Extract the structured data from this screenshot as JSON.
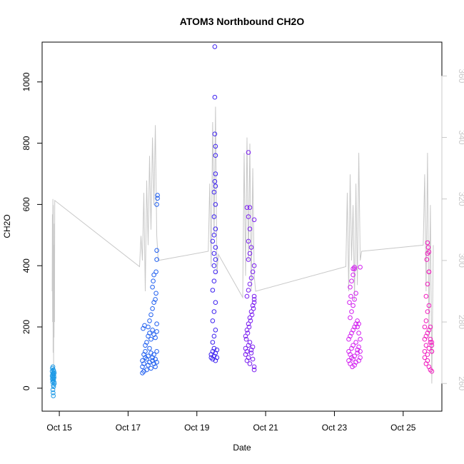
{
  "chart_data": {
    "type": "scatter",
    "title": "ATOM3 Northbound CH2O",
    "xlabel": "Date",
    "ylabel": "CH2O",
    "xlim": [
      "2017-10-14T12:00",
      "2017-10-26T03:00"
    ],
    "ylim": [
      -75,
      1130
    ],
    "y2lim": [
      251,
      371
    ],
    "xticks": [
      {
        "label": "Oct 15",
        "value": "2017-10-15"
      },
      {
        "label": "Oct 17",
        "value": "2017-10-17"
      },
      {
        "label": "Oct 19",
        "value": "2017-10-19"
      },
      {
        "label": "Oct 21",
        "value": "2017-10-21"
      },
      {
        "label": "Oct 23",
        "value": "2017-10-23"
      },
      {
        "label": "Oct 25",
        "value": "2017-10-25"
      }
    ],
    "yticks": [
      0,
      200,
      400,
      600,
      800,
      1000
    ],
    "y2ticks": [
      260,
      280,
      300,
      320,
      340,
      360
    ],
    "grid": false,
    "marker": "open-circle",
    "point_colors": [
      "#1e9ae6",
      "#1f5ff0",
      "#3d22f0",
      "#7b1ff0",
      "#d21ef0",
      "#f01ebe"
    ],
    "series": [
      {
        "color": "#1e9ae6",
        "x": [
          "2017-10-14T19:00",
          "2017-10-14T19:00",
          "2017-10-14T19:10",
          "2017-10-14T19:10",
          "2017-10-14T19:20",
          "2017-10-14T19:20",
          "2017-10-14T19:30",
          "2017-10-14T19:30",
          "2017-10-14T19:40",
          "2017-10-14T19:40",
          "2017-10-14T19:50",
          "2017-10-14T19:50",
          "2017-10-14T20:00",
          "2017-10-14T20:00",
          "2017-10-14T20:10",
          "2017-10-14T20:10",
          "2017-10-14T20:20",
          "2017-10-14T20:20",
          "2017-10-14T20:30",
          "2017-10-14T20:30",
          "2017-10-14T19:30",
          "2017-10-14T19:40",
          "2017-10-14T19:50",
          "2017-10-14T20:00"
        ],
        "y": [
          40,
          55,
          30,
          65,
          45,
          20,
          70,
          35,
          50,
          25,
          60,
          10,
          45,
          30,
          55,
          40,
          20,
          35,
          50,
          15,
          -5,
          -15,
          -25,
          5
        ]
      },
      {
        "color": "#1f5ff0",
        "x": [
          "2017-10-17T10:00",
          "2017-10-17T10:00",
          "2017-10-17T11:00",
          "2017-10-17T11:00",
          "2017-10-17T12:00",
          "2017-10-17T12:00",
          "2017-10-17T13:00",
          "2017-10-17T13:00",
          "2017-10-17T14:00",
          "2017-10-17T14:00",
          "2017-10-17T15:00",
          "2017-10-17T15:00",
          "2017-10-17T16:00",
          "2017-10-17T16:00",
          "2017-10-17T17:00",
          "2017-10-17T17:00",
          "2017-10-17T18:00",
          "2017-10-17T18:00",
          "2017-10-17T19:00",
          "2017-10-17T19:00",
          "2017-10-17T20:00",
          "2017-10-17T20:00",
          "2017-10-17T10:00",
          "2017-10-17T11:00",
          "2017-10-17T12:00",
          "2017-10-17T13:00",
          "2017-10-17T14:00",
          "2017-10-17T15:00",
          "2017-10-17T16:00",
          "2017-10-17T17:00",
          "2017-10-17T18:00",
          "2017-10-17T19:00",
          "2017-10-17T20:00",
          "2017-10-17T14:00",
          "2017-10-17T15:00",
          "2017-10-17T16:00",
          "2017-10-17T17:00",
          "2017-10-17T18:00",
          "2017-10-17T19:00",
          "2017-10-17T20:00",
          "2017-10-17T10:30",
          "2017-10-17T11:30",
          "2017-10-17T17:00",
          "2017-10-17T17:30",
          "2017-10-17T18:00",
          "2017-10-17T19:30",
          "2017-10-17T19:30",
          "2017-10-17T20:00",
          "2017-10-17T20:00",
          "2017-10-17T20:00",
          "2017-10-17T20:30",
          "2017-10-17T20:30"
        ],
        "y": [
          70,
          90,
          110,
          80,
          100,
          120,
          60,
          95,
          105,
          75,
          85,
          130,
          115,
          65,
          100,
          90,
          80,
          110,
          95,
          70,
          120,
          85,
          50,
          55,
          140,
          150,
          170,
          180,
          160,
          190,
          175,
          165,
          185,
          200,
          220,
          240,
          260,
          280,
          290,
          210,
          195,
          205,
          330,
          350,
          370,
          380,
          310,
          420,
          450,
          600,
          620,
          630
        ]
      },
      {
        "color": "#3d22f0",
        "x": [
          "2017-10-19T10:00",
          "2017-10-19T10:00",
          "2017-10-19T11:00",
          "2017-10-19T11:00",
          "2017-10-19T12:00",
          "2017-10-19T12:00",
          "2017-10-19T13:00",
          "2017-10-19T13:00",
          "2017-10-19T14:00",
          "2017-10-19T14:00",
          "2017-10-19T11:00",
          "2017-10-19T12:00",
          "2017-10-19T13:00",
          "2017-10-19T11:00",
          "2017-10-19T12:00",
          "2017-10-19T13:00",
          "2017-10-19T11:00",
          "2017-10-19T12:00",
          "2017-10-19T13:00",
          "2017-10-19T12:00",
          "2017-10-19T13:00",
          "2017-10-19T12:00",
          "2017-10-19T13:00",
          "2017-10-19T11:00",
          "2017-10-19T12:00",
          "2017-10-19T13:00",
          "2017-10-19T12:00",
          "2017-10-19T13:00",
          "2017-10-19T12:00",
          "2017-10-19T13:00",
          "2017-10-19T13:00",
          "2017-10-19T13:00",
          "2017-10-19T13:00",
          "2017-10-19T12:30",
          "2017-10-19T12:30",
          "2017-10-19T12:30",
          "2017-10-19T12:30"
        ],
        "y": [
          100,
          110,
          120,
          95,
          130,
          105,
          115,
          90,
          125,
          100,
          150,
          170,
          190,
          220,
          250,
          280,
          320,
          350,
          380,
          400,
          420,
          440,
          460,
          480,
          500,
          520,
          560,
          600,
          640,
          660,
          700,
          760,
          790,
          830,
          950,
          1115,
          675
        ]
      },
      {
        "color": "#7b1ff0",
        "x": [
          "2017-10-20T10:00",
          "2017-10-20T10:00",
          "2017-10-20T11:00",
          "2017-10-20T11:00",
          "2017-10-20T12:00",
          "2017-10-20T12:00",
          "2017-10-20T13:00",
          "2017-10-20T13:00",
          "2017-10-20T14:00",
          "2017-10-20T14:00",
          "2017-10-20T15:00",
          "2017-10-20T15:00",
          "2017-10-20T16:00",
          "2017-10-20T16:00",
          "2017-10-20T10:00",
          "2017-10-20T11:00",
          "2017-10-20T12:00",
          "2017-10-20T13:00",
          "2017-10-20T14:00",
          "2017-10-20T15:00",
          "2017-10-20T16:00",
          "2017-10-20T10:30",
          "2017-10-20T11:30",
          "2017-10-20T12:30",
          "2017-10-20T13:30",
          "2017-10-20T14:30",
          "2017-10-20T15:30",
          "2017-10-20T16:00",
          "2017-10-20T11:00",
          "2017-10-20T12:00",
          "2017-10-20T13:00",
          "2017-10-20T14:00",
          "2017-10-20T15:00",
          "2017-10-20T16:00",
          "2017-10-20T12:00",
          "2017-10-20T13:00",
          "2017-10-20T14:00",
          "2017-10-20T12:00",
          "2017-10-20T13:00",
          "2017-10-20T12:00",
          "2017-10-20T11:00",
          "2017-10-20T13:00",
          "2017-10-20T12:00",
          "2017-10-20T16:00",
          "2017-10-20T16:00"
        ],
        "y": [
          110,
          130,
          90,
          120,
          100,
          140,
          80,
          150,
          115,
          125,
          95,
          135,
          70,
          60,
          170,
          190,
          210,
          230,
          250,
          270,
          290,
          160,
          180,
          200,
          220,
          240,
          260,
          280,
          300,
          320,
          340,
          360,
          380,
          400,
          420,
          440,
          460,
          480,
          520,
          560,
          590,
          590,
          770,
          550,
          300
        ]
      },
      {
        "color": "#d21ef0",
        "x": [
          "2017-10-23T10:00",
          "2017-10-23T10:00",
          "2017-10-23T11:00",
          "2017-10-23T11:00",
          "2017-10-23T12:00",
          "2017-10-23T12:00",
          "2017-10-23T13:00",
          "2017-10-23T13:00",
          "2017-10-23T14:00",
          "2017-10-23T14:00",
          "2017-10-23T15:00",
          "2017-10-23T15:00",
          "2017-10-23T16:00",
          "2017-10-23T16:00",
          "2017-10-23T17:00",
          "2017-10-23T17:00",
          "2017-10-23T18:00",
          "2017-10-23T18:00",
          "2017-10-23T10:00",
          "2017-10-23T11:00",
          "2017-10-23T12:00",
          "2017-10-23T13:00",
          "2017-10-23T14:00",
          "2017-10-23T15:00",
          "2017-10-23T16:00",
          "2017-10-23T17:00",
          "2017-10-23T18:00",
          "2017-10-23T11:00",
          "2017-10-23T12:00",
          "2017-10-23T13:00",
          "2017-10-23T14:00",
          "2017-10-23T15:00",
          "2017-10-23T11:00",
          "2017-10-23T12:00",
          "2017-10-23T13:00",
          "2017-10-23T14:00",
          "2017-10-23T16:00",
          "2017-10-23T17:00",
          "2017-10-23T10:30",
          "2017-10-23T11:30",
          "2017-10-23T13:00",
          "2017-10-23T14:00",
          "2017-10-23T18:00",
          "2017-10-23T12:30"
        ],
        "y": [
          90,
          120,
          110,
          80,
          130,
          100,
          140,
          95,
          105,
          75,
          150,
          85,
          125,
          115,
          135,
          90,
          100,
          120,
          160,
          170,
          180,
          190,
          200,
          210,
          220,
          180,
          160,
          230,
          250,
          270,
          290,
          310,
          330,
          350,
          370,
          390,
          200,
          210,
          280,
          300,
          390,
          395,
          395,
          70
        ]
      },
      {
        "color": "#f01ebe",
        "x": [
          "2017-10-25T15:00",
          "2017-10-25T15:00",
          "2017-10-25T16:00",
          "2017-10-25T16:00",
          "2017-10-25T17:00",
          "2017-10-25T17:00",
          "2017-10-25T18:00",
          "2017-10-25T18:00",
          "2017-10-25T19:00",
          "2017-10-25T19:00",
          "2017-10-25T20:00",
          "2017-10-25T20:00",
          "2017-10-25T15:00",
          "2017-10-25T16:00",
          "2017-10-25T17:00",
          "2017-10-25T18:00",
          "2017-10-25T19:00",
          "2017-10-25T20:00",
          "2017-10-25T15:00",
          "2017-10-25T16:00",
          "2017-10-25T17:00",
          "2017-10-25T18:00",
          "2017-10-25T16:00",
          "2017-10-25T17:00",
          "2017-10-25T18:00",
          "2017-10-25T16:30",
          "2017-10-25T17:00",
          "2017-10-25T17:30",
          "2017-10-25T17:00",
          "2017-10-25T18:00",
          "2017-10-25T18:00",
          "2017-10-25T19:00",
          "2017-10-25T20:00",
          "2017-10-25T20:00"
        ],
        "y": [
          100,
          120,
          80,
          140,
          110,
          90,
          130,
          70,
          150,
          60,
          120,
          55,
          160,
          170,
          180,
          190,
          160,
          140,
          200,
          220,
          250,
          270,
          300,
          340,
          380,
          420,
          440,
          460,
          475,
          445,
          380,
          200,
          150,
          120
        ]
      }
    ],
    "secondary_line": {
      "color": "#c8c8c8",
      "x": [
        "2017-10-14T19:00",
        "2017-10-14T19:10",
        "2017-10-14T19:20",
        "2017-10-14T19:30",
        "2017-10-14T19:40",
        "2017-10-14T19:50",
        "2017-10-14T20:00",
        "2017-10-14T20:10",
        "2017-10-14T20:20",
        "2017-10-14T20:30",
        "2017-10-14T20:40",
        "2017-10-14T20:50",
        "2017-10-17T08:00",
        "2017-10-17T09:00",
        "2017-10-17T10:00",
        "2017-10-17T11:00",
        "2017-10-17T12:00",
        "2017-10-17T13:00",
        "2017-10-17T14:00",
        "2017-10-17T15:00",
        "2017-10-17T16:00",
        "2017-10-17T17:00",
        "2017-10-17T18:00",
        "2017-10-17T19:00",
        "2017-10-17T20:00",
        "2017-10-17T21:00",
        "2017-10-19T08:00",
        "2017-10-19T09:00",
        "2017-10-19T10:00",
        "2017-10-19T11:00",
        "2017-10-19T12:00",
        "2017-10-19T13:00",
        "2017-10-19T14:00",
        "2017-10-19T15:00",
        "2017-10-20T08:00",
        "2017-10-20T09:00",
        "2017-10-20T10:00",
        "2017-10-20T11:00",
        "2017-10-20T12:00",
        "2017-10-20T13:00",
        "2017-10-20T14:00",
        "2017-10-20T15:00",
        "2017-10-20T16:00",
        "2017-10-20T17:00",
        "2017-10-23T08:00",
        "2017-10-23T09:00",
        "2017-10-23T10:00",
        "2017-10-23T11:00",
        "2017-10-23T12:00",
        "2017-10-23T13:00",
        "2017-10-23T14:00",
        "2017-10-23T15:00",
        "2017-10-23T16:00",
        "2017-10-23T17:00",
        "2017-10-23T18:00",
        "2017-10-23T19:00",
        "2017-10-25T14:00",
        "2017-10-25T15:00",
        "2017-10-25T16:00",
        "2017-10-25T17:00",
        "2017-10-25T18:00",
        "2017-10-25T19:00",
        "2017-10-25T20:00",
        "2017-10-25T21:00"
      ],
      "y2": [
        290,
        315,
        280,
        320,
        270,
        318,
        265,
        305,
        275,
        312,
        280,
        319.5,
        298,
        308,
        300,
        322,
        290,
        326,
        305,
        334,
        310,
        340,
        318,
        344,
        308,
        300,
        303,
        325,
        298,
        345,
        308,
        350,
        296,
        302,
        288,
        335,
        295,
        340,
        300,
        338,
        290,
        330,
        295,
        290,
        298,
        322,
        290,
        328,
        300,
        318,
        287,
        325,
        292,
        335,
        300,
        303,
        305,
        328,
        290,
        335,
        275,
        318,
        260,
        305
      ]
    }
  }
}
